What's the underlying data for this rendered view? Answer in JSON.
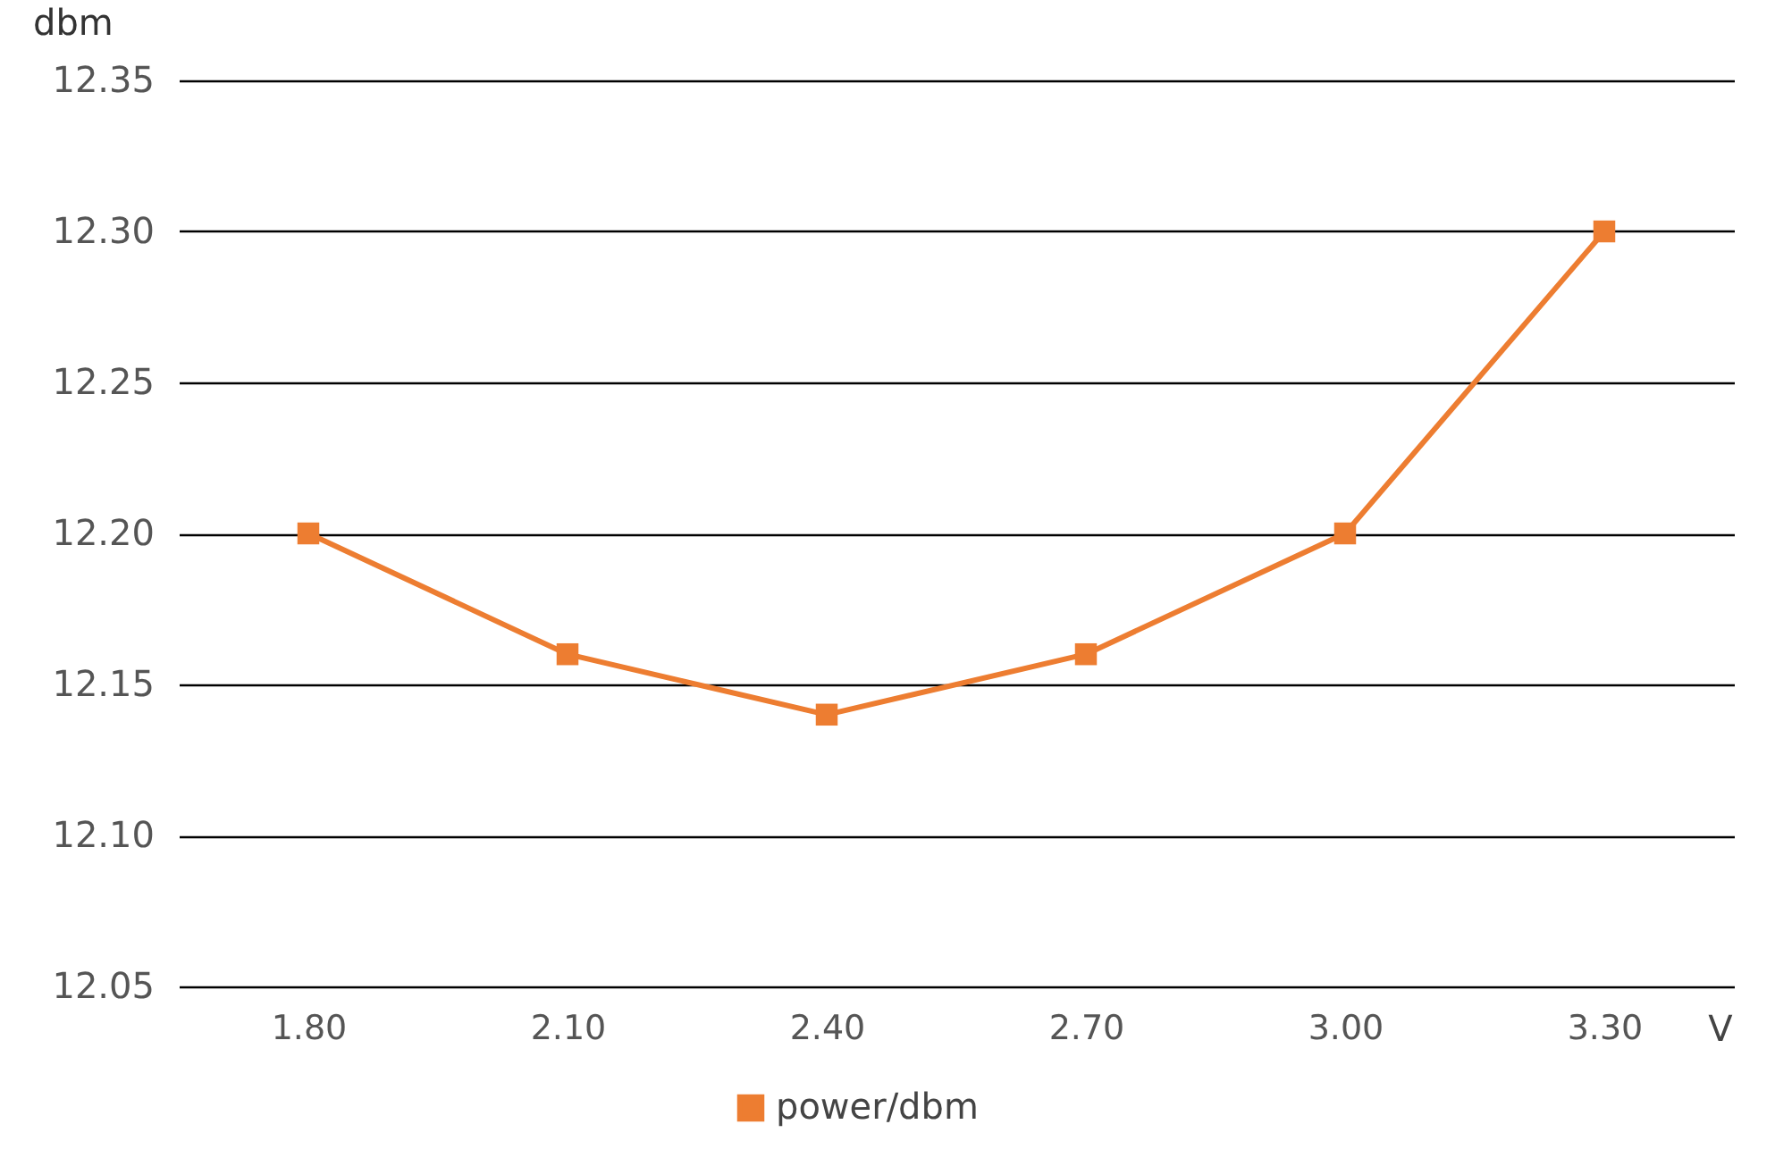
{
  "chart_data": {
    "type": "line",
    "xlabel": "V",
    "ylabel": "dbm",
    "categories": [
      "1.80",
      "2.10",
      "2.40",
      "2.70",
      "3.00",
      "3.30"
    ],
    "series": [
      {
        "name": "power/dbm",
        "color": "#ed7d31",
        "values": [
          12.2,
          12.16,
          12.14,
          12.16,
          12.2,
          12.3
        ]
      }
    ],
    "ylim": [
      12.05,
      12.35
    ],
    "yticks": [
      12.05,
      {
        "value": 12.1,
        "label": "12.10"
      },
      12.15,
      {
        "value": 12.2,
        "label": "12.20"
      },
      12.25,
      {
        "value": 12.3,
        "label": "12.30"
      },
      12.35
    ],
    "grid": "y",
    "legend": "bottom",
    "marker": "square",
    "line_style": "solid"
  }
}
